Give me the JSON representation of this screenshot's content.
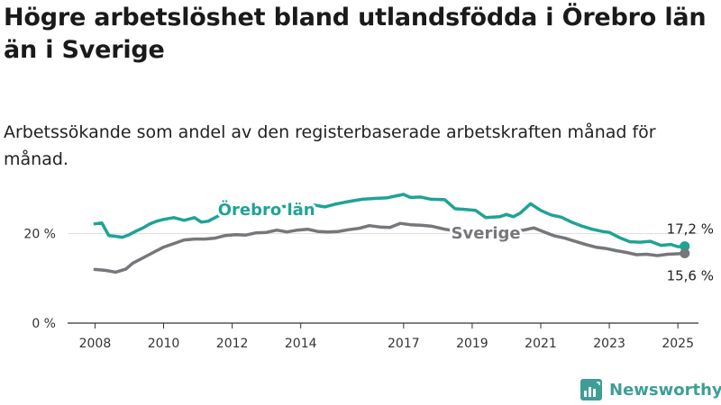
{
  "title": "Högre arbetslöshet bland utlandsfödda i Örebro län än i Sverige",
  "subtitle": "Arbetssökande som andel av den registerbaserade arbetskraften månad för månad.",
  "brand": {
    "name": "Newsworthy",
    "icon": "newsworthy-logo-icon"
  },
  "colors": {
    "orebro": "#1fa396",
    "sverige": "#77767b",
    "axis": "#333333",
    "grid": "#dddddd"
  },
  "chart_data": {
    "type": "line",
    "x_ticks": [
      "2008",
      "2010",
      "2012",
      "2014",
      "2017",
      "2019",
      "2021",
      "2023",
      "2025"
    ],
    "y_ticks": [
      "0 %",
      "20 %"
    ],
    "ylim": [
      0,
      30
    ],
    "xlim": [
      2007.2,
      2025.6
    ],
    "series": [
      {
        "name": "Örebro län",
        "key": "orebro",
        "end_label": "17,2 %",
        "points": [
          [
            2008.0,
            22.2
          ],
          [
            2008.2,
            22.4
          ],
          [
            2008.4,
            19.6
          ],
          [
            2008.6,
            19.4
          ],
          [
            2008.8,
            19.2
          ],
          [
            2009.0,
            19.8
          ],
          [
            2009.2,
            20.6
          ],
          [
            2009.4,
            21.3
          ],
          [
            2009.6,
            22.2
          ],
          [
            2009.8,
            22.8
          ],
          [
            2010.0,
            23.2
          ],
          [
            2010.3,
            23.6
          ],
          [
            2010.6,
            23.0
          ],
          [
            2010.9,
            23.6
          ],
          [
            2011.1,
            22.6
          ],
          [
            2011.3,
            22.8
          ],
          [
            2011.6,
            24.0
          ],
          [
            2011.9,
            24.6
          ],
          [
            2012.1,
            25.4
          ],
          [
            2012.5,
            25.6
          ],
          [
            2012.8,
            26.2
          ],
          [
            2013.2,
            25.6
          ],
          [
            2013.5,
            26.1
          ],
          [
            2013.8,
            26.0
          ],
          [
            2014.2,
            26.1
          ],
          [
            2014.4,
            26.4
          ],
          [
            2014.7,
            26.0
          ],
          [
            2015.0,
            26.6
          ],
          [
            2015.4,
            27.2
          ],
          [
            2015.8,
            27.7
          ],
          [
            2016.2,
            27.9
          ],
          [
            2016.5,
            28.0
          ],
          [
            2016.8,
            28.5
          ],
          [
            2017.0,
            28.8
          ],
          [
            2017.2,
            28.1
          ],
          [
            2017.5,
            28.2
          ],
          [
            2017.8,
            27.7
          ],
          [
            2018.2,
            27.6
          ],
          [
            2018.5,
            25.6
          ],
          [
            2018.8,
            25.4
          ],
          [
            2019.1,
            25.2
          ],
          [
            2019.4,
            23.6
          ],
          [
            2019.8,
            23.8
          ],
          [
            2020.0,
            24.3
          ],
          [
            2020.2,
            23.8
          ],
          [
            2020.4,
            24.6
          ],
          [
            2020.7,
            26.7
          ],
          [
            2021.0,
            25.2
          ],
          [
            2021.3,
            24.2
          ],
          [
            2021.6,
            23.7
          ],
          [
            2021.9,
            22.6
          ],
          [
            2022.2,
            21.7
          ],
          [
            2022.5,
            21.0
          ],
          [
            2022.8,
            20.5
          ],
          [
            2023.0,
            20.3
          ],
          [
            2023.3,
            19.1
          ],
          [
            2023.6,
            18.2
          ],
          [
            2023.9,
            18.1
          ],
          [
            2024.2,
            18.3
          ],
          [
            2024.5,
            17.4
          ],
          [
            2024.8,
            17.6
          ],
          [
            2025.0,
            17.1
          ],
          [
            2025.2,
            17.2
          ]
        ]
      },
      {
        "name": "Sverige",
        "key": "sverige",
        "end_label": "15,6 %",
        "points": [
          [
            2008.0,
            12.0
          ],
          [
            2008.3,
            11.8
          ],
          [
            2008.6,
            11.4
          ],
          [
            2008.9,
            12.1
          ],
          [
            2009.1,
            13.4
          ],
          [
            2009.4,
            14.6
          ],
          [
            2009.7,
            15.8
          ],
          [
            2010.0,
            17.0
          ],
          [
            2010.3,
            17.8
          ],
          [
            2010.6,
            18.6
          ],
          [
            2010.9,
            18.8
          ],
          [
            2011.2,
            18.8
          ],
          [
            2011.5,
            19.0
          ],
          [
            2011.8,
            19.6
          ],
          [
            2012.1,
            19.8
          ],
          [
            2012.4,
            19.7
          ],
          [
            2012.7,
            20.2
          ],
          [
            2013.0,
            20.3
          ],
          [
            2013.3,
            20.8
          ],
          [
            2013.6,
            20.4
          ],
          [
            2013.9,
            20.8
          ],
          [
            2014.2,
            21.0
          ],
          [
            2014.5,
            20.5
          ],
          [
            2014.8,
            20.4
          ],
          [
            2015.1,
            20.5
          ],
          [
            2015.4,
            20.9
          ],
          [
            2015.7,
            21.2
          ],
          [
            2016.0,
            21.8
          ],
          [
            2016.3,
            21.5
          ],
          [
            2016.6,
            21.4
          ],
          [
            2016.9,
            22.3
          ],
          [
            2017.2,
            22.0
          ],
          [
            2017.5,
            21.9
          ],
          [
            2017.8,
            21.7
          ],
          [
            2018.2,
            21.0
          ],
          [
            2018.6,
            20.5
          ],
          [
            2019.0,
            20.3
          ],
          [
            2019.4,
            20.2
          ],
          [
            2019.8,
            20.6
          ],
          [
            2020.1,
            20.7
          ],
          [
            2020.5,
            20.8
          ],
          [
            2020.8,
            21.3
          ],
          [
            2021.1,
            20.4
          ],
          [
            2021.4,
            19.5
          ],
          [
            2021.7,
            19.0
          ],
          [
            2022.0,
            18.3
          ],
          [
            2022.3,
            17.6
          ],
          [
            2022.6,
            17.0
          ],
          [
            2022.9,
            16.7
          ],
          [
            2023.2,
            16.2
          ],
          [
            2023.5,
            15.8
          ],
          [
            2023.8,
            15.3
          ],
          [
            2024.1,
            15.4
          ],
          [
            2024.4,
            15.1
          ],
          [
            2024.7,
            15.4
          ],
          [
            2025.0,
            15.5
          ],
          [
            2025.2,
            15.6
          ]
        ]
      }
    ]
  }
}
